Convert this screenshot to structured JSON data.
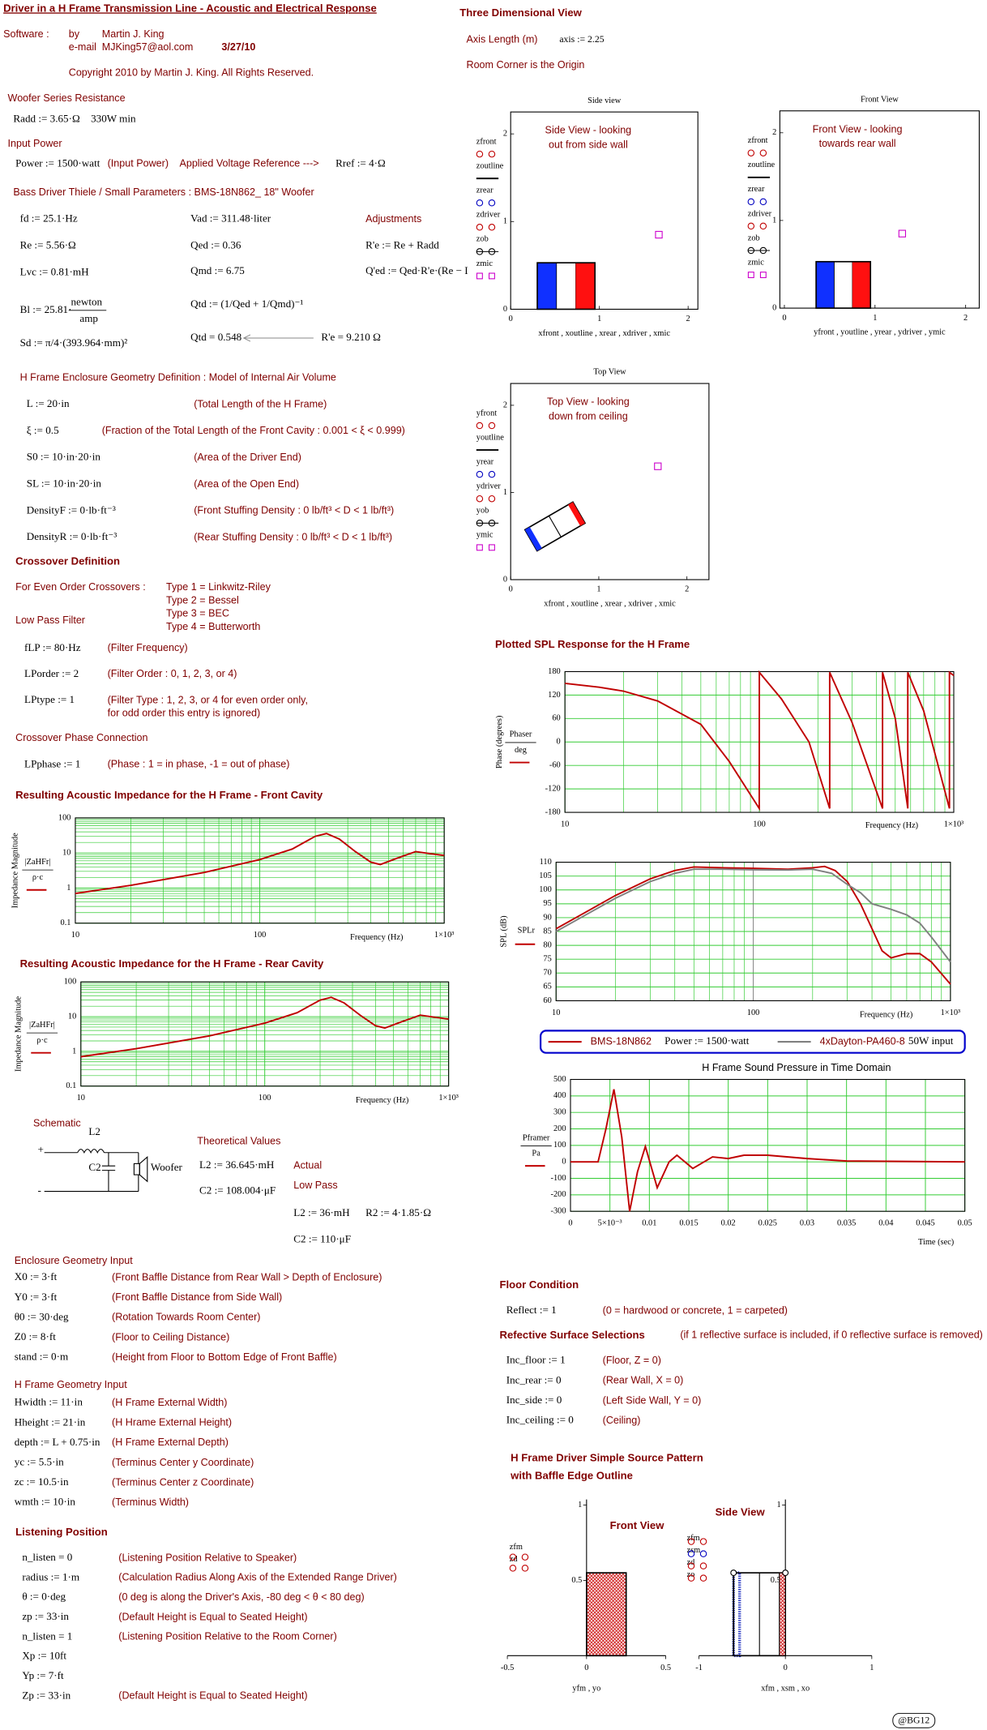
{
  "header": {
    "title": "Driver in a H Frame Transmission Line - Acoustic and Electrical Response",
    "software_label": "Software :",
    "by": "by",
    "author": "Martin J. King",
    "email_label": "e-mail",
    "email": "MJKing57@aol.com",
    "date": "3/27/10",
    "copyright": "Copyright 2010 by Martin J. King. All Rights Reserved."
  },
  "woofer_resistance": {
    "heading": "Woofer Series Resistance",
    "radd": "Radd := 3.65·Ω",
    "note": "330W  min"
  },
  "input_power": {
    "heading": "Input Power",
    "power": "Power := 1500·watt",
    "comment": "(Input Power)",
    "ref_label": "Applied Voltage Reference --->",
    "rref": "Rref := 4·Ω"
  },
  "ts": {
    "heading": "Bass Driver Thiele / Small Parameters : BMS-18N862_ 18\" Woofer",
    "fd": "fd := 25.1·Hz",
    "vad": "Vad := 311.48·liter",
    "adjustments": "Adjustments",
    "re": "Re := 5.56·Ω",
    "qed": "Qed := 0.36",
    "re_adj": "R'e := Re + Radd",
    "lvc": "Lvc := 0.81·mH",
    "qmd": "Qmd := 6.75",
    "qed_adj": "Q'ed := Qed·R'e·(Re − I",
    "bl": "Bl := 25.81·",
    "bl_num": "newton",
    "bl_den": "amp",
    "qtd_def": "Qtd := (1/Qed + 1/Qmd)⁻¹",
    "sd": "Sd := π/4·(393.964·mm)²",
    "qtd": "Qtd = 0.548",
    "re_result": "R'e = 9.210 Ω"
  },
  "geometry": {
    "heading": "H Frame Enclosure Geometry Definition : Model of Internal Air Volume",
    "rows": [
      [
        "L := 20·in",
        "(Total Length of the H Frame)"
      ],
      [
        "ξ := 0.5",
        "(Fraction of the Total Length of the Front Cavity : 0.001 < ξ < 0.999)"
      ],
      [
        "S0 := 10·in·20·in",
        "(Area of the Driver End)"
      ],
      [
        "SL := 10·in·20·in",
        "(Area of the Open End)"
      ],
      [
        "DensityF := 0·lb·ft⁻³",
        "(Front Stuffing Density : 0 lb/ft³ < D < 1 lb/ft³)"
      ],
      [
        "DensityR := 0·lb·ft⁻³",
        "(Rear Stuffing Density : 0 lb/ft³ < D < 1 lb/ft³)"
      ]
    ]
  },
  "crossover": {
    "heading": "Crossover Definition",
    "even_label": "For Even Order Crossovers :",
    "types": [
      "Type 1 = Linkwitz-Riley",
      "Type 2 = Bessel",
      "Type 3 = BEC",
      "Type 4 = Butterworth"
    ],
    "lp_heading": "Low Pass Filter",
    "rows": [
      [
        "fLP := 80·Hz",
        "(Filter Frequency)"
      ],
      [
        "LPorder := 2",
        "(Filter Order : 0, 1, 2, 3, or 4)"
      ],
      [
        "LPtype := 1",
        "(Filter Type : 1, 2, 3, or 4 for even order only,"
      ]
    ],
    "type_note2": " for odd order this entry is ignored)",
    "phase_heading": "Crossover Phase Connection",
    "phase": "LPphase := 1",
    "phase_comment": "(Phase : 1 = in phase, -1 = out of phase)"
  },
  "front_impedance": {
    "heading": "Resulting Acoustic Impedance for the H Frame - Front Cavity",
    "ylabel": "Impedance Magnitude",
    "expr_num": "|ZaHFr|",
    "expr_den": "ρ·c",
    "xlabel": "Frequency (Hz)",
    "xlog": true,
    "ylog": true,
    "grid": true,
    "color": "#c00000",
    "xlim": [
      10,
      1000
    ],
    "ylim": [
      0.1,
      100
    ],
    "xticks": [
      10,
      100,
      {
        "value": 1000,
        "label": "1×10³"
      }
    ],
    "yticks": [
      0.1,
      1,
      10,
      100
    ],
    "series": [
      {
        "x": [
          10,
          20,
          50,
          100,
          150,
          200,
          230,
          270,
          330,
          400,
          450,
          550,
          700,
          850,
          1000
        ],
        "y": [
          0.7,
          1.2,
          2.8,
          6.5,
          13,
          30,
          36,
          25,
          11,
          5.5,
          4.7,
          7,
          11,
          9.5,
          8.5
        ]
      }
    ]
  },
  "rear_impedance": {
    "heading": "Resulting Acoustic Impedance for the H Frame - Rear Cavity",
    "ylabel": "Impedance Magnitude",
    "expr_num": "|ZaHFr|",
    "expr_den": "ρ·c",
    "xlabel": "Frequency (Hz)",
    "xlog": true,
    "ylog": true,
    "grid": true,
    "color": "#c00000",
    "xlim": [
      10,
      1000
    ],
    "ylim": [
      0.1,
      100
    ],
    "xticks": [
      10,
      100,
      {
        "value": 1000,
        "label": "1×10³"
      }
    ],
    "yticks": [
      0.1,
      1,
      10,
      100
    ],
    "series": [
      {
        "x": [
          10,
          20,
          50,
          100,
          150,
          200,
          230,
          270,
          330,
          400,
          450,
          550,
          700,
          850,
          1000
        ],
        "y": [
          0.7,
          1.2,
          2.8,
          6.5,
          13,
          30,
          36,
          25,
          11,
          5.5,
          4.7,
          7,
          11,
          9.5,
          8.5
        ]
      }
    ]
  },
  "schematic": {
    "heading": "Schematic",
    "l2": "L2",
    "c2": "C2",
    "woofer": "Woofer",
    "plus": "+",
    "minus": "-",
    "theory_heading": "Theoretical Values",
    "l2_theory": "L2 := 36.645·mH",
    "c2_theory": "C2 := 108.004·μF",
    "actual": "Actual",
    "low_pass": "Low Pass",
    "l2_actual": "L2 := 36·mH",
    "r2_actual": "R2 := 4·1.85·Ω",
    "c2_actual": "C2 := 110·μF"
  },
  "enclosure_input": {
    "heading": "Enclosure Geometry Input",
    "rows": [
      [
        "X0 := 3·ft",
        "(Front Baffle Distance from Rear Wall > Depth of Enclosure)"
      ],
      [
        "Y0 := 3·ft",
        "(Front Baffle Distance from Side Wall)"
      ],
      [
        "θ0 := 30·deg",
        "(Rotation Towards Room Center)"
      ],
      [
        "Z0 := 8·ft",
        "(Floor to Ceiling Distance)"
      ],
      [
        "stand := 0·m",
        "(Height from Floor to Bottom Edge of Front Baffle)"
      ]
    ]
  },
  "hframe_input": {
    "heading": "H Frame Geometry Input",
    "rows": [
      [
        "Hwidth := 11·in",
        "(H Frame External Width)"
      ],
      [
        "Hheight := 21·in",
        "(H Hrame External Height)"
      ],
      [
        "depth := L + 0.75·in",
        "(H Frame External Depth)"
      ],
      [
        "yc := 5.5·in",
        "(Terminus Center y Coordinate)"
      ],
      [
        "zc := 10.5·in",
        "(Terminus Center z Coordinate)"
      ],
      [
        "wmth := 10·in",
        "(Terminus Width)"
      ]
    ]
  },
  "listening": {
    "heading": "Listening Position",
    "rows": [
      [
        "n_listen = 0",
        "(Listening Position Relative to Speaker)"
      ],
      [
        "radius := 1·m",
        "(Calculation Radius Along Axis of the Extended Range Driver)"
      ],
      [
        "θ := 0·deg",
        "(0 deg is along the Driver's Axis, -80 deg < θ < 80 deg)"
      ],
      [
        "zp := 33·in",
        "(Default Height is Equal to Seated Height)"
      ],
      [
        "n_listen = 1",
        "(Listening Position Relative to the Room Corner)"
      ],
      [
        "Xp := 10ft"
      ],
      [
        "Yp := 7·ft"
      ],
      [
        "Zp := 33·in",
        "(Default Height is Equal to Seated Height)"
      ]
    ]
  },
  "view3d": {
    "heading": "Three Dimensional View",
    "axis_label": "Axis Length (m)",
    "axis": "axis := 2.25",
    "origin": "Room Corner is the Origin"
  },
  "side_view": {
    "title": "Side view",
    "note1": "Side View - looking",
    "note2": "out from side wall",
    "xlabel": "xfront , xoutline , xrear , xdriver , xmic",
    "xlim": [
      0,
      2.11
    ],
    "ylim": [
      0,
      2.25
    ],
    "xticks": [
      0,
      1,
      2
    ],
    "yticks": [
      0,
      1,
      2
    ],
    "legend": [
      {
        "name": "zfront",
        "color": "#c00000",
        "marker": "circle"
      },
      {
        "name": "zoutline",
        "color": "#000000",
        "marker": "line"
      },
      {
        "name": "zrear",
        "color": "#0000c0",
        "marker": "circle"
      },
      {
        "name": "zdriver",
        "color": "#c00000",
        "marker": "circle"
      },
      {
        "name": "zob",
        "color": "#000000",
        "marker": "circleline"
      },
      {
        "name": "zmic",
        "color": "#cc00cc",
        "marker": "square"
      }
    ]
  },
  "front_view": {
    "title": "Front View",
    "note1": "Front View - looking",
    "note2": "towards rear wall",
    "xlabel": "yfront , youtline , yrear , ydriver , ymic",
    "xlim": [
      -0.05,
      2.15
    ],
    "ylim": [
      0,
      2.25
    ],
    "xticks": [
      0,
      1,
      2
    ],
    "yticks": [
      0,
      1,
      2
    ],
    "legend": [
      {
        "name": "zfront",
        "color": "#c00000",
        "marker": "circle"
      },
      {
        "name": "zoutline",
        "color": "#000000",
        "marker": "line"
      },
      {
        "name": "zrear",
        "color": "#0000c0",
        "marker": "circle"
      },
      {
        "name": "zdriver",
        "color": "#c00000",
        "marker": "circle"
      },
      {
        "name": "zob",
        "color": "#000000",
        "marker": "circleline"
      },
      {
        "name": "zmic",
        "color": "#cc00cc",
        "marker": "square"
      }
    ]
  },
  "top_view": {
    "title": "Top View",
    "note1": "Top View - looking",
    "note2": "down from ceiling",
    "xlabel": "xfront , xoutline , xrear , xdriver , xmic",
    "xlim": [
      0,
      2.25
    ],
    "ylim": [
      0,
      2.25
    ],
    "xticks": [
      0,
      1,
      2
    ],
    "yticks": [
      0,
      1,
      2
    ],
    "legend": [
      {
        "name": "yfront",
        "color": "#c00000",
        "marker": "circle"
      },
      {
        "name": "youtline",
        "color": "#000000",
        "marker": "line"
      },
      {
        "name": "yrear",
        "color": "#0000c0",
        "marker": "circle"
      },
      {
        "name": "ydriver",
        "color": "#c00000",
        "marker": "circle"
      },
      {
        "name": "yob",
        "color": "#000000",
        "marker": "circleline"
      },
      {
        "name": "ymic",
        "color": "#cc00cc",
        "marker": "square"
      }
    ]
  },
  "spl_heading": "Plotted SPL Response for the H Frame",
  "phase_plot": {
    "ylabel": "Phase (degrees)",
    "expr_num": "Phaser",
    "expr_den": "deg",
    "xlabel": "Frequency (Hz)",
    "xlog": true,
    "ylog": false,
    "grid": true,
    "color": "#c00000",
    "xlim": [
      10,
      1000
    ],
    "ylim": [
      -180,
      180
    ],
    "xticks": [
      10,
      100,
      {
        "value": 1000,
        "label": "1×10³"
      }
    ],
    "yticks": [
      -180,
      -120,
      -60,
      0,
      60,
      120,
      180
    ],
    "series": [
      {
        "x": [
          10,
          15,
          20,
          30,
          50,
          70,
          99.9,
          100,
          130,
          180,
          229.9,
          230,
          300,
          429.9,
          430,
          500,
          579.9,
          580,
          700,
          949.9,
          950,
          1000
        ],
        "y": [
          150,
          140,
          130,
          105,
          45,
          -50,
          -170,
          178,
          110,
          0,
          -170,
          178,
          50,
          -170,
          178,
          60,
          -170,
          178,
          80,
          -170,
          178,
          170
        ]
      }
    ]
  },
  "spl_plot": {
    "ylabel": "SPL (dB)",
    "expr": "SPLr",
    "xlabel": "Frequency (Hz)",
    "xlog": true,
    "ylog": false,
    "grid": true,
    "xlim": [
      10,
      1000
    ],
    "ylim": [
      60,
      110
    ],
    "xticks": [
      10,
      100,
      {
        "value": 1000,
        "label": "1×10³"
      }
    ],
    "yticks": [
      60,
      65,
      70,
      75,
      80,
      85,
      90,
      95,
      100,
      105,
      110
    ],
    "series": [
      {
        "name": "BMS-18N862",
        "note": "Power := 1500·watt",
        "color": "#c00000",
        "x": [
          10,
          15,
          20,
          30,
          40,
          50,
          70,
          100,
          150,
          200,
          230,
          260,
          300,
          350,
          400,
          450,
          500,
          600,
          700,
          800,
          1000
        ],
        "y": [
          86,
          93,
          98,
          104,
          107,
          108.3,
          108,
          107.8,
          107.5,
          108,
          108.5,
          107,
          103,
          95,
          86,
          78,
          75.5,
          77,
          77,
          74,
          66
        ]
      },
      {
        "name": "4xDayton-PA460-8",
        "note": "50W input",
        "color": "#808080",
        "x": [
          10,
          15,
          20,
          30,
          40,
          50,
          70,
          100,
          150,
          200,
          250,
          300,
          350,
          400,
          500,
          600,
          700,
          800,
          1000
        ],
        "y": [
          85,
          92,
          97,
          103,
          106,
          107.5,
          107.5,
          107.3,
          107.2,
          107.5,
          106,
          102,
          99,
          95,
          93,
          91,
          88,
          83,
          74
        ]
      }
    ]
  },
  "time_plot": {
    "title": "H Frame Sound Pressure in Time Domain",
    "expr_num": "Pframer",
    "expr_den": "Pa",
    "xlabel": "Time (sec)",
    "xlog": false,
    "ylog": false,
    "grid": true,
    "color": "#c00000",
    "xlim": [
      0,
      0.05
    ],
    "ylim": [
      -300,
      500
    ],
    "xticks": [
      0,
      {
        "value": 0.005,
        "label": "5×10⁻³"
      },
      0.01,
      0.015,
      0.02,
      0.025,
      0.03,
      0.035,
      0.04,
      0.045,
      0.05
    ],
    "yticks": [
      -300,
      -200,
      -100,
      0,
      100,
      200,
      300,
      400,
      500
    ],
    "series": [
      {
        "x": [
          0,
          0.0035,
          0.0045,
          0.0055,
          0.0065,
          0.0075,
          0.0085,
          0.0095,
          0.011,
          0.0125,
          0.0135,
          0.0155,
          0.018,
          0.02,
          0.022,
          0.025,
          0.03,
          0.035,
          0.05
        ],
        "y": [
          0,
          0,
          200,
          440,
          150,
          -300,
          -60,
          93,
          -157,
          0,
          40,
          -40,
          30,
          20,
          40,
          40,
          20,
          5,
          0
        ]
      }
    ]
  },
  "floor": {
    "heading": "Floor Condition",
    "reflect": "Reflect := 1",
    "comment": "(0 = hardwood or concrete, 1 = carpeted)"
  },
  "surfaces": {
    "heading": "Refective Surface Selections",
    "note": "(if 1 reflective surface is included, if 0 reflective surface is removed)",
    "rows": [
      [
        "Inc_floor := 1",
        "(Floor, Z = 0)"
      ],
      [
        "Inc_rear := 0",
        "(Rear Wall, X = 0)"
      ],
      [
        "Inc_side := 0",
        "(Left Side Wall, Y = 0)"
      ],
      [
        "Inc_ceiling := 0",
        "(Ceiling)"
      ]
    ]
  },
  "pattern": {
    "heading1": "H Frame  Driver Simple Source Pattern",
    "heading2": "with Baffle Edge Outline",
    "front": {
      "title": "Front View",
      "xlabel": "yfm , yo",
      "xlim": [
        -0.5,
        0.5
      ],
      "ylim": [
        0,
        1
      ],
      "xticks": [
        -0.5,
        0,
        0.5
      ],
      "yticks": [
        0.5,
        1
      ],
      "legend": [
        "zfm",
        "zd"
      ]
    },
    "side": {
      "title": "Side View",
      "xlabel": "xfm , xsm , xo",
      "xlim": [
        -1,
        1
      ],
      "ylim": [
        0,
        1
      ],
      "xticks": [
        -1,
        0,
        1
      ],
      "yticks": [
        0.5,
        1
      ],
      "legend": [
        "zfm",
        "zsm",
        "zd",
        "zo"
      ]
    }
  },
  "stamp": "@BG12"
}
